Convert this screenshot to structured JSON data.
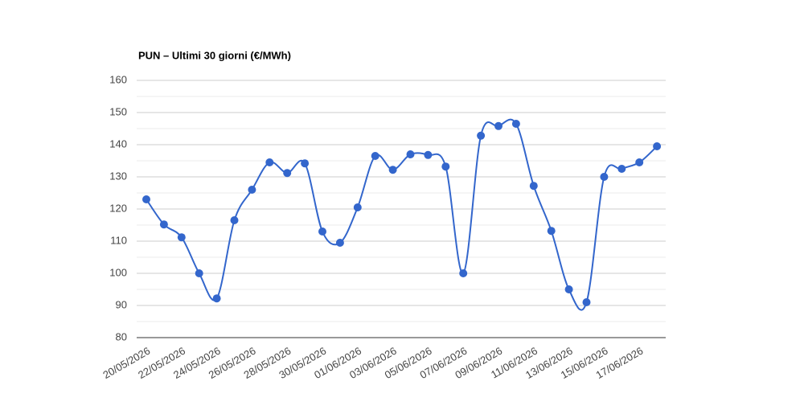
{
  "chart_data": {
    "type": "line",
    "title": "PUN – Ultimi 30 giorni (€/MWh)",
    "categories": [
      "20/05/2026",
      null,
      "22/05/2026",
      null,
      "24/05/2026",
      null,
      "26/05/2026",
      null,
      "28/05/2026",
      null,
      "30/05/2026",
      null,
      "01/06/2026",
      null,
      "03/06/2026",
      null,
      "05/06/2026",
      null,
      "07/06/2026",
      null,
      "09/06/2026",
      null,
      "11/06/2026",
      null,
      "13/06/2026",
      null,
      "15/06/2026",
      null,
      "17/06/2026",
      null
    ],
    "values": [
      123.0,
      115.2,
      111.2,
      100.0,
      92.2,
      116.5,
      126.0,
      134.5,
      131.2,
      134.2,
      113.0,
      109.5,
      120.5,
      136.5,
      132.2,
      137.0,
      136.8,
      133.2,
      100.0,
      142.8,
      145.8,
      146.5,
      127.2,
      113.2,
      95.0,
      91.0,
      130.0,
      132.5,
      134.5,
      139.5
    ],
    "color": "#3366cc",
    "ylim": [
      80,
      160
    ],
    "yticks": [
      80,
      90,
      100,
      110,
      120,
      130,
      140,
      150,
      160
    ],
    "grid": true,
    "minor_grid": true,
    "smooth": true
  }
}
